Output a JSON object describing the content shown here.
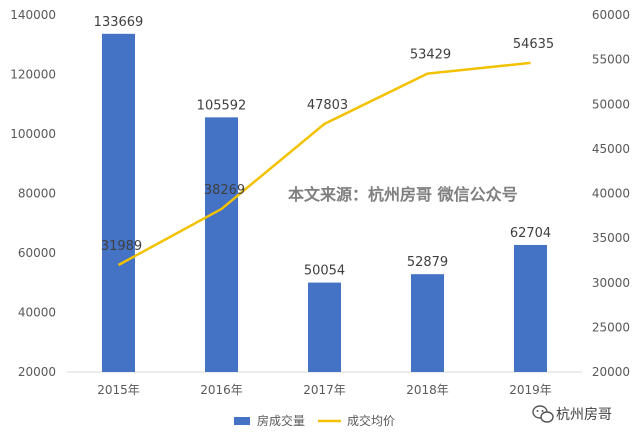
{
  "chart_data": {
    "type": "bar",
    "categories": [
      "2015年",
      "2016年",
      "2017年",
      "2018年",
      "2019年"
    ],
    "series": [
      {
        "name": "房成交量",
        "type": "bar",
        "axis": "left",
        "values": [
          133669,
          105592,
          50054,
          52879,
          62704
        ],
        "color": "#4472c4"
      },
      {
        "name": "成交均价",
        "type": "line",
        "axis": "right",
        "values": [
          31989,
          38269,
          47803,
          53429,
          54635
        ],
        "color": "#f2c200"
      }
    ],
    "y_left": {
      "ylim": [
        20000,
        140000
      ],
      "ticks": [
        "20000",
        "40000",
        "60000",
        "80000",
        "100000",
        "120000",
        "140000"
      ]
    },
    "y_right": {
      "ylim": [
        20000,
        60000
      ],
      "ticks": [
        "20000",
        "25000",
        "30000",
        "35000",
        "40000",
        "45000",
        "50000",
        "55000",
        "60000"
      ]
    },
    "grid": false,
    "legend": "bottom-center",
    "annotation": "本文来源：杭州房哥 微信公众号"
  },
  "watermark": {
    "label": "杭州房哥"
  },
  "colors": {
    "axis": "#d9d9d9"
  }
}
